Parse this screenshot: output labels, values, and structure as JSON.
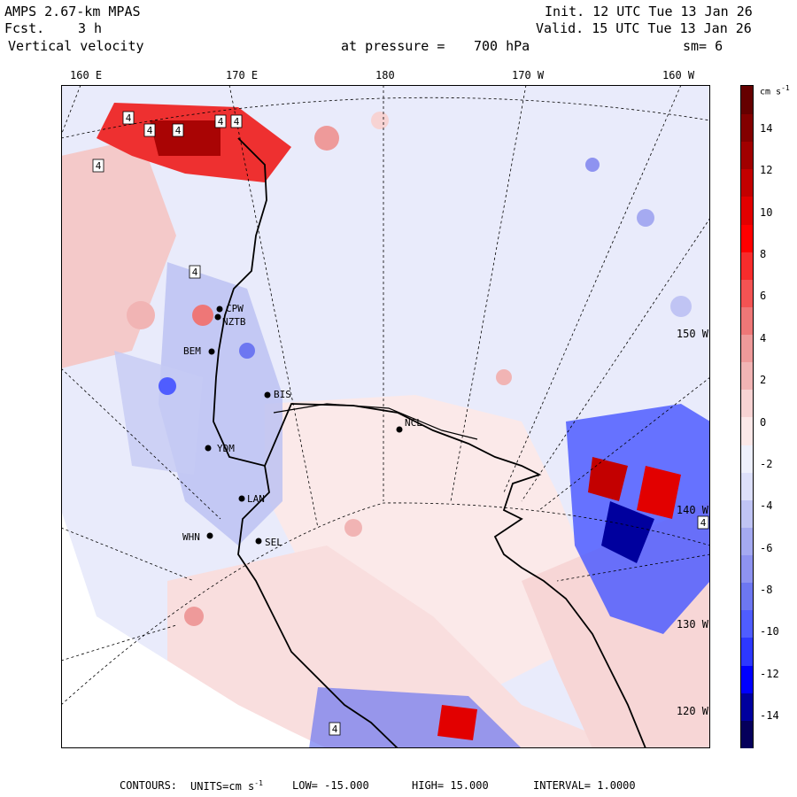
{
  "header": {
    "model": "AMPS 2.67-km MPAS",
    "fcst_label": "Fcst.",
    "fcst_value": "3 h",
    "field": "Vertical velocity",
    "init": "Init. 12 UTC Tue 13 Jan 26",
    "valid": "Valid. 15 UTC Tue 13 Jan 26",
    "pressure_label": "at pressure =",
    "pressure_value": "700 hPa",
    "smoothing": "sm= 6"
  },
  "longitude_labels": [
    "160 E",
    "170 E",
    "180",
    "170 W",
    "160 W"
  ],
  "latitude_labels": [
    "150 W",
    "140 W",
    "130 W",
    "120 W"
  ],
  "stations": [
    "CPW",
    "NZTB",
    "BEM",
    "BIS",
    "NCL",
    "YDM",
    "LAN",
    "WHN",
    "SEL"
  ],
  "contour_box_labels": [
    "4",
    "4",
    "4",
    "4",
    "4",
    "4",
    "4",
    "4",
    "4"
  ],
  "colorbar": {
    "units_base": "cm s",
    "units_exp": "-1",
    "ticks": [
      "14",
      "12",
      "10",
      "8",
      "6",
      "4",
      "2",
      "0",
      "-2",
      "-4",
      "-6",
      "-8",
      "-10",
      "-12",
      "-14"
    ],
    "colors": [
      "#05005b",
      "#00009e",
      "#0000ff",
      "#2d38ff",
      "#4f5dff",
      "#6d77f1",
      "#8e93f0",
      "#a5aaf1",
      "#c0c4f4",
      "#dde0fa",
      "#eef0fc",
      "#fbe8e8",
      "#f7d3d3",
      "#f1b4b4",
      "#ee9a9a",
      "#ee7777",
      "#f35353",
      "#f72c2c",
      "#ff0000",
      "#e20000",
      "#c30000",
      "#a10000",
      "#830000",
      "#650000"
    ]
  },
  "footer": {
    "contours_label": "CONTOURS:",
    "units_label": "UNITS=cm s",
    "units_exp": "-1",
    "low_label": "LOW=",
    "low": "-15.000",
    "high_label": "HIGH=",
    "high": "15.000",
    "interval_label": "INTERVAL=",
    "interval": "1.0000"
  }
}
